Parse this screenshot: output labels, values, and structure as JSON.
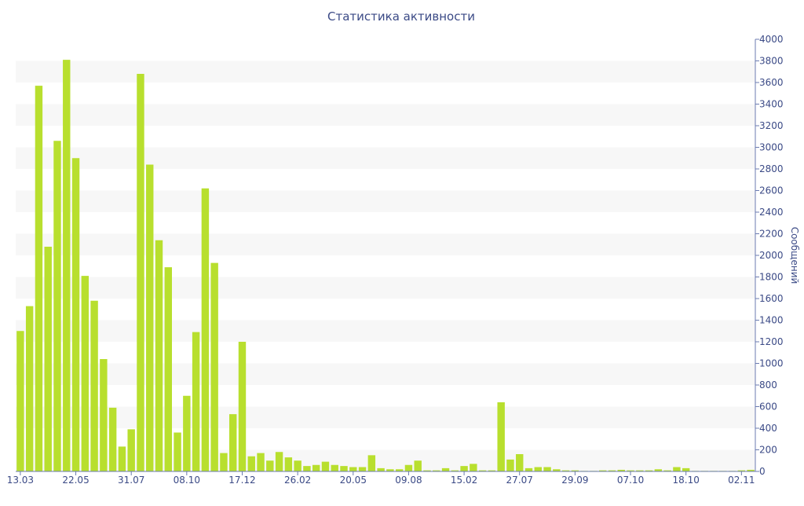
{
  "chart_data": {
    "type": "bar",
    "title": "Статистика активности",
    "y_label": "Сообщений",
    "color": "#b8df2e",
    "categories": [
      "13.03",
      null,
      null,
      null,
      null,
      null,
      "22.05",
      null,
      null,
      null,
      null,
      null,
      "31.07",
      null,
      null,
      null,
      null,
      null,
      "08.10",
      null,
      null,
      null,
      null,
      null,
      "17.12",
      null,
      null,
      null,
      null,
      null,
      "26.02",
      null,
      null,
      null,
      null,
      null,
      "20.05",
      null,
      null,
      null,
      null,
      null,
      "09.08",
      null,
      null,
      null,
      null,
      null,
      "15.02",
      null,
      null,
      null,
      null,
      null,
      "27.07",
      null,
      null,
      null,
      null,
      null,
      "29.09",
      null,
      null,
      null,
      null,
      null,
      "07.10",
      null,
      null,
      null,
      null,
      null,
      "18.10",
      null,
      null,
      null,
      null,
      null,
      "02.11",
      null
    ],
    "values": [
      1300,
      1530,
      3570,
      2080,
      3060,
      3810,
      2900,
      1810,
      1580,
      1040,
      590,
      230,
      390,
      3680,
      2840,
      2140,
      1890,
      360,
      700,
      1290,
      2620,
      1930,
      170,
      530,
      1200,
      140,
      170,
      100,
      180,
      130,
      100,
      50,
      60,
      90,
      60,
      50,
      40,
      40,
      150,
      30,
      20,
      20,
      60,
      100,
      10,
      10,
      30,
      10,
      50,
      70,
      10,
      10,
      640,
      110,
      160,
      30,
      40,
      40,
      20,
      10,
      10,
      5,
      5,
      10,
      10,
      15,
      10,
      10,
      10,
      20,
      10,
      40,
      30,
      5,
      5,
      5,
      5,
      5,
      10,
      15
    ],
    "ylim": [
      0,
      4000
    ],
    "yticks": [
      0,
      200,
      400,
      600,
      800,
      1000,
      1200,
      1400,
      1600,
      1800,
      2000,
      2200,
      2400,
      2600,
      2800,
      3000,
      3200,
      3400,
      3600,
      3800,
      4000
    ],
    "grid_bands": true
  }
}
